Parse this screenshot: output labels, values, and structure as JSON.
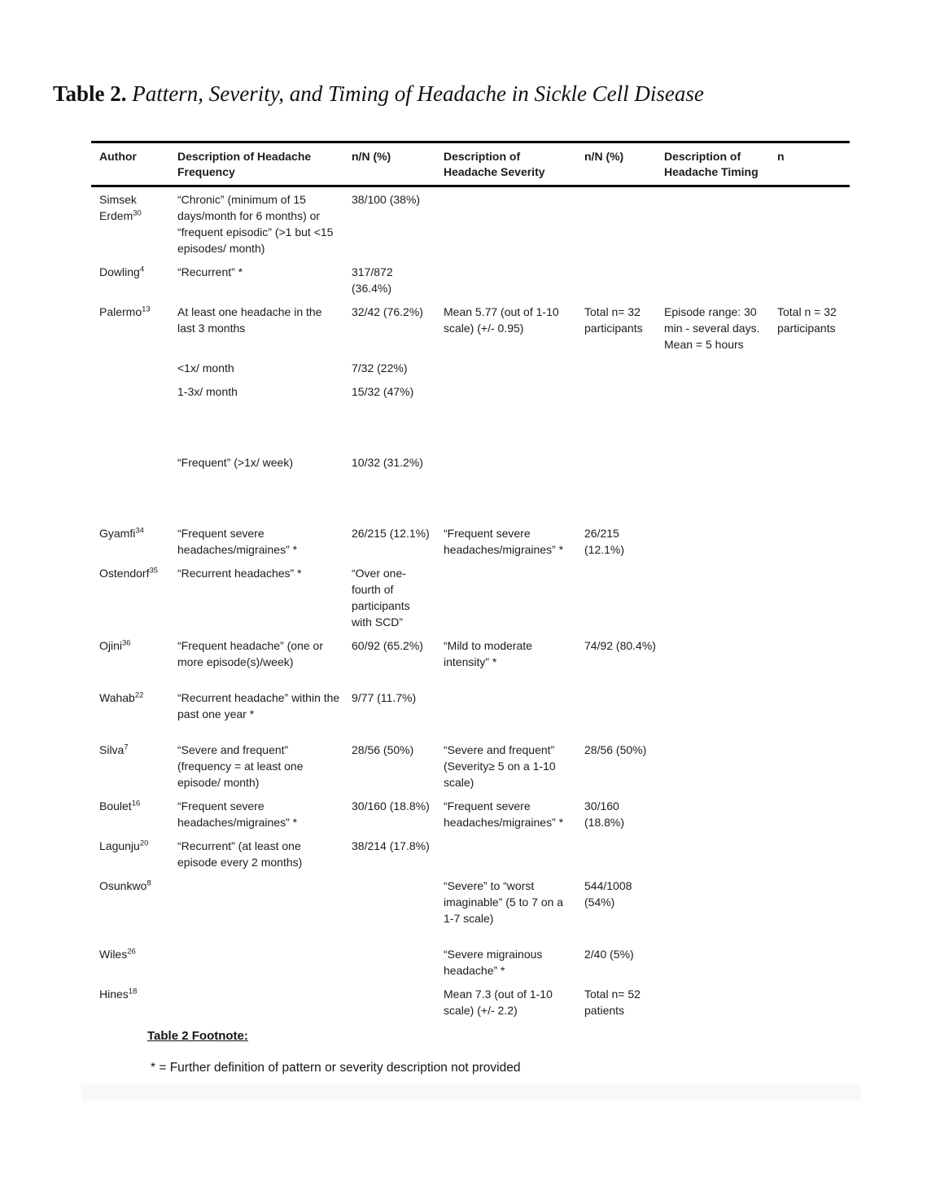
{
  "title": {
    "label": "Table 2.",
    "text": "Pattern, Severity, and Timing of Headache in Sickle Cell Disease"
  },
  "table": {
    "headers": [
      "Author",
      "Description of Headache Frequency",
      "n/N (%)",
      "Description of Headache Severity",
      "n/N (%)",
      "Description of Headache Timing",
      "n"
    ],
    "rows": [
      {
        "author": "Simsek Erdem",
        "ref": "30",
        "freq": "“Chronic” (minimum of 15 days/month for 6 months) or “frequent episodic” (>1 but <15 episodes/ month)",
        "freq_n": "38/100 (38%)",
        "sev": "",
        "sev_n": "",
        "timing": "",
        "n": ""
      },
      {
        "author": "Dowling",
        "ref": "4",
        "freq": "“Recurrent” *",
        "freq_n": "317/872 (36.4%)",
        "sev": "",
        "sev_n": "",
        "timing": "",
        "n": ""
      },
      {
        "author": "Palermo",
        "ref": "13",
        "freq": "At least one headache in the last 3 months",
        "freq_n": "32/42 (76.2%)",
        "sev": "Mean 5.77 (out of 1-10 scale) (+/- 0.95)",
        "sev_n": "Total n= 32 participants",
        "timing": "Episode range: 30 min - several days. Mean = 5 hours",
        "n": "Total n = 32 participants"
      },
      {
        "author": "",
        "ref": "",
        "freq": "<1x/ month",
        "freq_n": "7/32 (22%)",
        "sev": "",
        "sev_n": "",
        "timing": "",
        "n": ""
      },
      {
        "author": "",
        "ref": "",
        "freq": "1-3x/ month",
        "freq_n": "15/32 (47%)",
        "sev": "",
        "sev_n": "",
        "timing": "",
        "n": ""
      },
      {
        "spacer": "lg"
      },
      {
        "author": "",
        "ref": "",
        "freq": "“Frequent” (>1x/ week)",
        "freq_n": "10/32 (31.2%)",
        "sev": "",
        "sev_n": "",
        "timing": "",
        "n": ""
      },
      {
        "spacer": "lg"
      },
      {
        "author": "Gyamfi",
        "ref": "34",
        "freq": "“Frequent severe headaches/migraines” *",
        "freq_n": "26/215 (12.1%)",
        "sev": "“Frequent severe headaches/migraines” *",
        "sev_n": "26/215 (12.1%)",
        "timing": "",
        "n": ""
      },
      {
        "author": "Ostendorf",
        "ref": "35",
        "freq": "“Recurrent headaches” *",
        "freq_n": "“Over one-fourth of participants with SCD”",
        "sev": "",
        "sev_n": "",
        "timing": "",
        "n": ""
      },
      {
        "author": "Ojini",
        "ref": "36",
        "freq": "“Frequent headache” (one or more episode(s)/week)",
        "freq_n": "60/92 (65.2%)",
        "sev": "“Mild to moderate intensity” *",
        "sev_n": "74/92 (80.4%)",
        "timing": "",
        "n": ""
      },
      {
        "author": "Wahab",
        "ref": "22",
        "extra_top": true,
        "freq": "“Recurrent headache” within the past one year *",
        "freq_n": "9/77 (11.7%)",
        "sev": "",
        "sev_n": "",
        "timing": "",
        "n": ""
      },
      {
        "author": "Silva",
        "ref": "7",
        "extra_top": true,
        "freq": "“Severe and frequent” (frequency = at least one episode/ month)",
        "freq_n": "28/56 (50%)",
        "sev": "“Severe and frequent” (Severity≥ 5 on a 1-10 scale)",
        "sev_n": "28/56 (50%)",
        "timing": "",
        "n": ""
      },
      {
        "author": "Boulet",
        "ref": "16",
        "freq": "“Frequent severe headaches/migraines” *",
        "freq_n": "30/160 (18.8%)",
        "sev": "“Frequent severe headaches/migraines” *",
        "sev_n": "30/160 (18.8%)",
        "timing": "",
        "n": ""
      },
      {
        "author": "Lagunju",
        "ref": "20",
        "freq": "“Recurrent” (at least one episode every 2 months)",
        "freq_n": "38/214 (17.8%)",
        "sev": "",
        "sev_n": "",
        "timing": "",
        "n": ""
      },
      {
        "author": "Osunkwo",
        "ref": "8",
        "freq": "",
        "freq_n": "",
        "sev": "“Severe” to “worst imaginable” (5 to 7 on a 1-7 scale)",
        "sev_n": "544/1008 (54%)",
        "timing": "",
        "n": ""
      },
      {
        "author": "Wiles",
        "ref": "26",
        "extra_top": true,
        "freq": "",
        "freq_n": "",
        "sev": "“Severe migrainous headache” *",
        "sev_n": "2/40 (5%)",
        "timing": "",
        "n": ""
      },
      {
        "author": "Hines",
        "ref": "18",
        "freq": "",
        "freq_n": "",
        "sev": "Mean 7.3 (out of 1-10 scale) (+/- 2.2)",
        "sev_n": "Total n= 52 patients",
        "timing": "",
        "n": ""
      }
    ]
  },
  "footnote": {
    "heading": "Table 2 Footnote:",
    "text": "* = Further definition of pattern or severity description not provided"
  }
}
